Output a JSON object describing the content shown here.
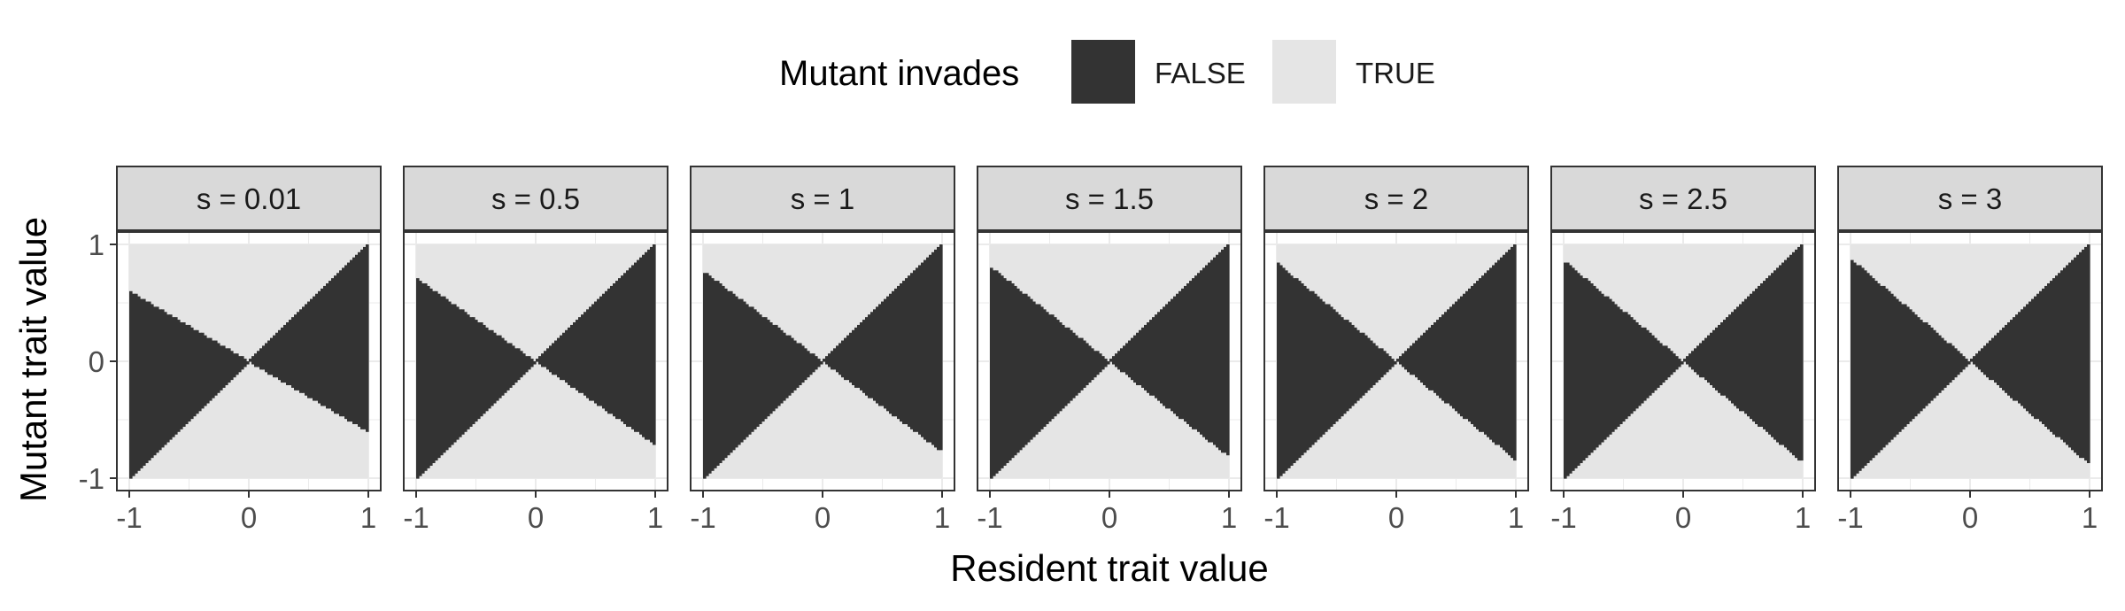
{
  "chart_data": {
    "type": "heatmap",
    "legend": {
      "title": "Mutant invades",
      "position": "top",
      "entries": [
        {
          "label": "FALSE",
          "color": "#333333"
        },
        {
          "label": "TRUE",
          "color": "#e5e5e5"
        }
      ]
    },
    "xlabel": "Resident trait value",
    "ylabel": "Mutant trait value",
    "xlim": [
      -1,
      1
    ],
    "ylim": [
      -1,
      1
    ],
    "x_ticks": [
      "-1",
      "0",
      "1"
    ],
    "y_ticks": [
      "-1",
      "0",
      "1"
    ],
    "grid": true,
    "facets": [
      {
        "label": "s = 0.01",
        "s": 0.01
      },
      {
        "label": "s = 0.5",
        "s": 0.5
      },
      {
        "label": "s = 1",
        "s": 1
      },
      {
        "label": "s = 1.5",
        "s": 1.5
      },
      {
        "label": "s = 2",
        "s": 2
      },
      {
        "label": "s = 2.5",
        "s": 2.5
      },
      {
        "label": "s = 3",
        "s": 3
      }
    ],
    "colors": {
      "false": "#333333",
      "true": "#e5e5e5",
      "strip_fill": "#d9d9d9",
      "panel_border": "#333333",
      "gridline": "#ebebeb"
    }
  }
}
